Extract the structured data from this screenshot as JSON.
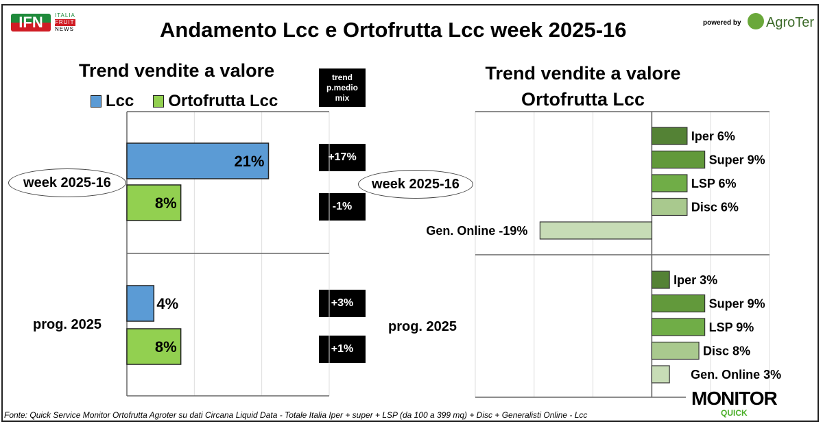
{
  "header": {
    "logo_text": "IFN",
    "logo_sub": [
      "ITALIA",
      "FRUIT",
      "NEWS"
    ],
    "title": "Andamento Lcc e Ortofrutta Lcc week 2025-16",
    "powered_by": "powered by",
    "brand": "AgroTer"
  },
  "footer": {
    "source": "Fonte: Quick Service Monitor Ortofrutta Agroter su dati Circana Liquid Data - Totale Italia Iper + super + LSP (da 100 a 399 mq) + Disc + Generalisti Online - Lcc",
    "monitor_logo": "MONITOR",
    "monitor_sub": "QUICK"
  },
  "trend_box": {
    "header": "trend p.medio mix",
    "values": [
      "+17%",
      "-1%",
      "+3%",
      "+1%"
    ]
  },
  "chart_data": [
    {
      "type": "bar",
      "orientation": "horizontal",
      "title": "Trend vendite a valore",
      "categories": [
        "week 2025-16",
        "prog. 2025"
      ],
      "series": [
        {
          "name": "Lcc",
          "values": [
            21,
            4
          ],
          "labels": [
            "21%",
            "4%"
          ],
          "color": "#5b9bd5"
        },
        {
          "name": "Ortofrutta Lcc",
          "values": [
            8,
            8
          ],
          "labels": [
            "8%",
            "8%"
          ],
          "color": "#92d050"
        }
      ],
      "xlim": [
        0,
        30
      ],
      "grid": true,
      "legend": "top"
    },
    {
      "type": "bar",
      "orientation": "horizontal",
      "title": "Trend vendite a valore Ortofrutta Lcc",
      "categories": [
        "week 2025-16",
        "prog. 2025"
      ],
      "channels": [
        "Iper",
        "Super",
        "LSP",
        "Disc",
        "Gen. Online"
      ],
      "colors": [
        "#548235",
        "#62993b",
        "#70ad47",
        "#a9c98e",
        "#c7dcb6"
      ],
      "values": [
        [
          6,
          9,
          6,
          6,
          -19
        ],
        [
          3,
          9,
          9,
          8,
          3
        ]
      ],
      "labels": [
        [
          "Iper 6%",
          "Super 9%",
          "LSP 6%",
          "Disc 6%",
          "Gen. Online -19%"
        ],
        [
          "Iper 3%",
          "Super 9%",
          "LSP 9%",
          "Disc 8%",
          "Gen. Online 3%"
        ]
      ],
      "xlim": [
        -30,
        20
      ],
      "grid": true
    }
  ]
}
